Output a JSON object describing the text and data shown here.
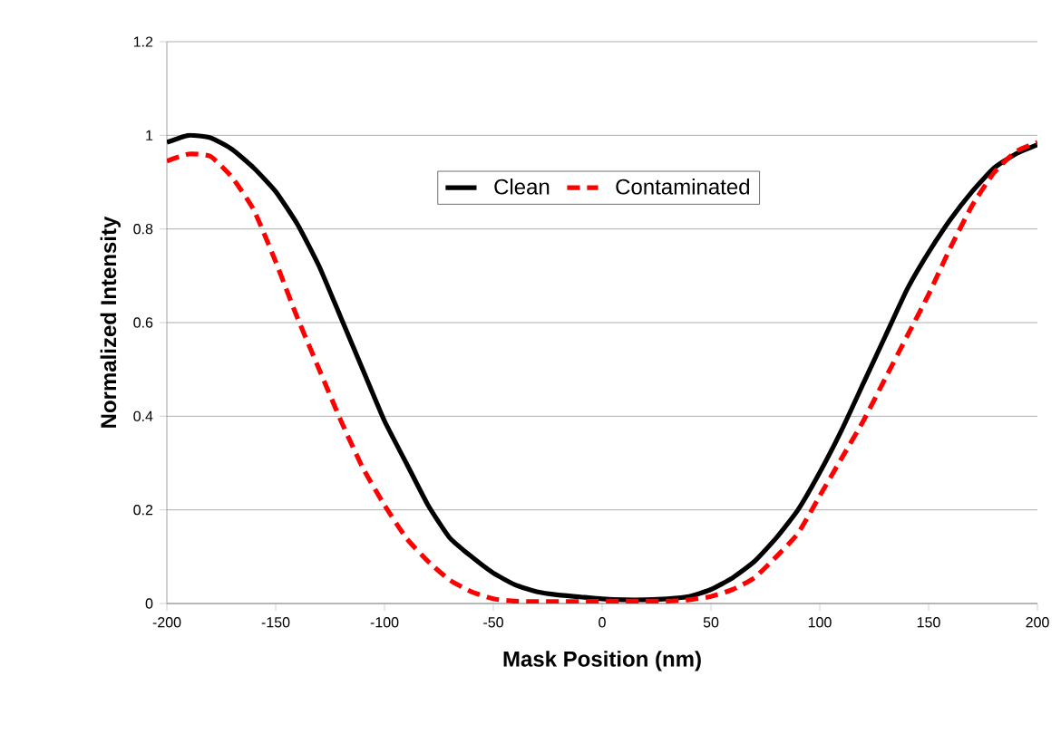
{
  "chart_data": {
    "type": "line",
    "xlabel": "Mask Position (nm)",
    "ylabel": "Normalized Intensity",
    "x": [
      -200,
      -190,
      -180,
      -170,
      -160,
      -150,
      -140,
      -130,
      -120,
      -110,
      -100,
      -90,
      -80,
      -70,
      -60,
      -50,
      -40,
      -30,
      -20,
      -10,
      0,
      10,
      20,
      30,
      40,
      50,
      60,
      70,
      80,
      90,
      100,
      110,
      120,
      130,
      140,
      150,
      160,
      170,
      180,
      190,
      200
    ],
    "series": [
      {
        "name": "Clean",
        "color": "#000000",
        "line_style": "solid",
        "values": [
          0.985,
          1.0,
          0.995,
          0.97,
          0.93,
          0.88,
          0.81,
          0.72,
          0.61,
          0.5,
          0.39,
          0.3,
          0.21,
          0.14,
          0.1,
          0.065,
          0.04,
          0.025,
          0.018,
          0.014,
          0.01,
          0.008,
          0.008,
          0.01,
          0.015,
          0.03,
          0.055,
          0.09,
          0.14,
          0.2,
          0.28,
          0.37,
          0.47,
          0.57,
          0.67,
          0.75,
          0.82,
          0.88,
          0.93,
          0.96,
          0.98
        ]
      },
      {
        "name": "Contaminated",
        "color": "#ff0000",
        "line_style": "dashed",
        "values": [
          0.945,
          0.96,
          0.955,
          0.91,
          0.84,
          0.73,
          0.61,
          0.5,
          0.39,
          0.29,
          0.21,
          0.14,
          0.09,
          0.05,
          0.025,
          0.01,
          0.005,
          0.004,
          0.004,
          0.004,
          0.005,
          0.005,
          0.005,
          0.005,
          0.008,
          0.015,
          0.03,
          0.055,
          0.1,
          0.15,
          0.23,
          0.31,
          0.39,
          0.48,
          0.57,
          0.66,
          0.76,
          0.85,
          0.92,
          0.965,
          0.985
        ]
      }
    ],
    "xlim": [
      -200,
      200
    ],
    "xticks": [
      -200,
      -150,
      -100,
      -50,
      0,
      50,
      100,
      150,
      200
    ],
    "ylim": [
      0,
      1.2
    ],
    "yticks": [
      0,
      0.2,
      0.4,
      0.6,
      0.8,
      1,
      1.2
    ],
    "grid": "y",
    "legend": "top",
    "marker": "none"
  }
}
